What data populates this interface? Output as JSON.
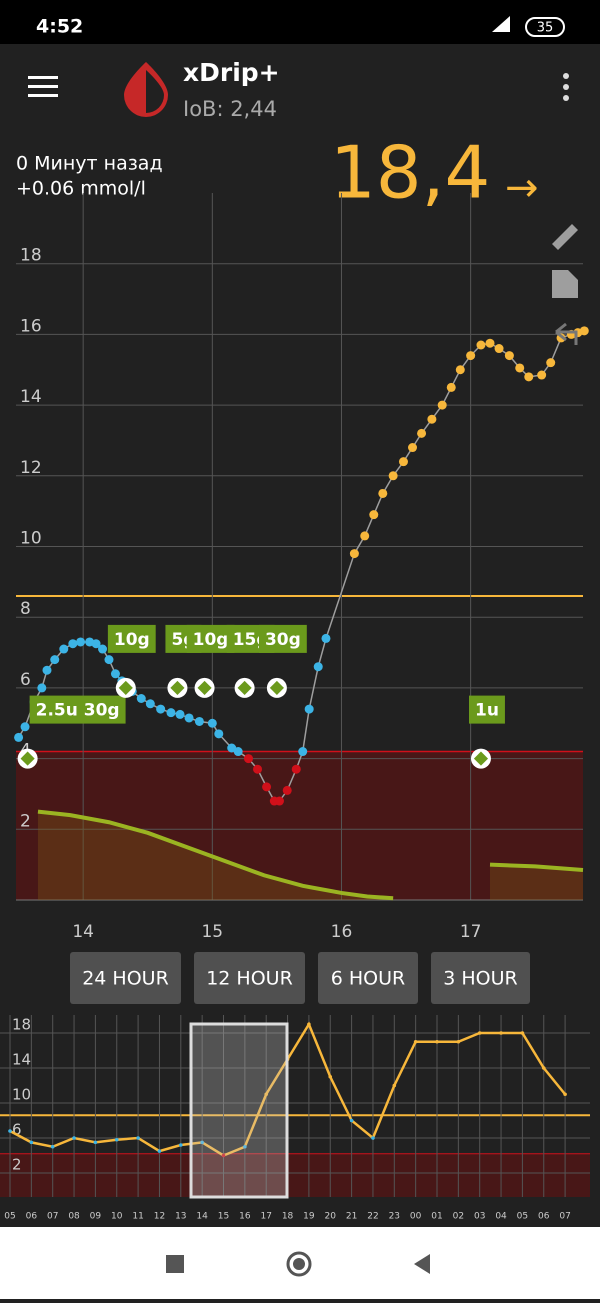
{
  "status_bar": {
    "time": "4:52",
    "battery": "35"
  },
  "app_bar": {
    "title": "xDrip+",
    "subtitle": "IoB: 2,44"
  },
  "reading": {
    "age": "0 Минут назад",
    "delta": "+0.06 mmol/l",
    "value": "18,4",
    "arrow": "→"
  },
  "chart_data": {
    "type": "scatter",
    "x": [
      13.5,
      13.55,
      13.62,
      13.68,
      13.72,
      13.78,
      13.85,
      13.92,
      13.98,
      14.05,
      14.1,
      14.15,
      14.2,
      14.25,
      14.3,
      14.38,
      14.45,
      14.52,
      14.6,
      14.68,
      14.75,
      14.82,
      14.9,
      15.0,
      15.05,
      15.15,
      15.2,
      15.28,
      15.35,
      15.42,
      15.48,
      15.52,
      15.58,
      15.65,
      15.7,
      15.75,
      15.82,
      15.88,
      16.1,
      16.18,
      16.25,
      16.32,
      16.4,
      16.48,
      16.55,
      16.62,
      16.7,
      16.78,
      16.85,
      16.92,
      17.0,
      17.08,
      17.15,
      17.22,
      17.3,
      17.38,
      17.45,
      17.55,
      17.62,
      17.7,
      17.78,
      17.83,
      17.88
    ],
    "values": [
      4.6,
      4.9,
      5.6,
      6.0,
      6.5,
      6.8,
      7.1,
      7.25,
      7.3,
      7.3,
      7.25,
      7.1,
      6.8,
      6.4,
      6.2,
      5.9,
      5.7,
      5.55,
      5.4,
      5.3,
      5.25,
      5.15,
      5.05,
      5.0,
      4.7,
      4.3,
      4.2,
      4.0,
      3.7,
      3.2,
      2.8,
      2.8,
      3.1,
      3.7,
      4.2,
      5.4,
      6.6,
      7.4,
      9.8,
      10.3,
      10.9,
      11.5,
      12.0,
      12.4,
      12.8,
      13.2,
      13.6,
      14.0,
      14.5,
      15.0,
      15.4,
      15.7,
      15.75,
      15.6,
      15.4,
      15.05,
      14.8,
      14.85,
      15.2,
      15.9,
      16.0,
      16.05,
      16.1
    ],
    "low": 4.2,
    "high": 8.6,
    "in_range_color": "#3cb4e6",
    "low_color": "#d0101a",
    "high_color": "#f7b73b",
    "line_color": "#9e9e9e",
    "xlim": [
      13.48,
      17.87
    ],
    "ylim": [
      0,
      20
    ],
    "xticks": [
      14,
      15,
      16,
      17
    ],
    "yticks": [
      2,
      4,
      6,
      8,
      10,
      12,
      14,
      16,
      18
    ],
    "grid": true,
    "treatments": [
      {
        "x": 13.57,
        "y": 4.0,
        "label": "2.5u 30g"
      },
      {
        "x": 14.33,
        "y": 6.0,
        "label": "10g"
      },
      {
        "x": 14.73,
        "y": 6.0,
        "label": "5g"
      },
      {
        "x": 14.94,
        "y": 6.0,
        "label": "10g"
      },
      {
        "x": 15.25,
        "y": 6.0,
        "label": "15g"
      },
      {
        "x": 15.5,
        "y": 6.0,
        "label": "30g"
      },
      {
        "x": 17.08,
        "y": 4.0,
        "label": "1u"
      }
    ],
    "activity": {
      "color": "#9bb422",
      "x": [
        13.65,
        13.9,
        14.2,
        14.5,
        14.8,
        15.1,
        15.4,
        15.7,
        16.0,
        16.2,
        16.4
      ],
      "values": [
        2.5,
        2.4,
        2.2,
        1.9,
        1.5,
        1.1,
        0.7,
        0.4,
        0.2,
        0.1,
        0.05
      ],
      "x2": [
        17.15,
        17.5,
        17.87
      ],
      "values2": [
        1.0,
        0.95,
        0.85
      ]
    }
  },
  "range_buttons": [
    "24 HOUR",
    "12 HOUR",
    "6 HOUR",
    "3 HOUR"
  ],
  "preview": {
    "yticks": [
      2,
      6,
      10,
      14,
      18
    ],
    "hours": [
      "05",
      "06",
      "07",
      "08",
      "09",
      "10",
      "11",
      "12",
      "13",
      "14",
      "15",
      "16",
      "17",
      "18",
      "19",
      "20",
      "21",
      "22",
      "23",
      "00",
      "01",
      "02",
      "03",
      "04",
      "05",
      "06",
      "07"
    ],
    "values": [
      6.8,
      5.5,
      5.0,
      6.0,
      5.5,
      5.8,
      6.0,
      4.5,
      5.2,
      5.5,
      4.0,
      5.0,
      11,
      15,
      19,
      13,
      8,
      6,
      12,
      17,
      17,
      17,
      18,
      18,
      18,
      14,
      11
    ]
  }
}
